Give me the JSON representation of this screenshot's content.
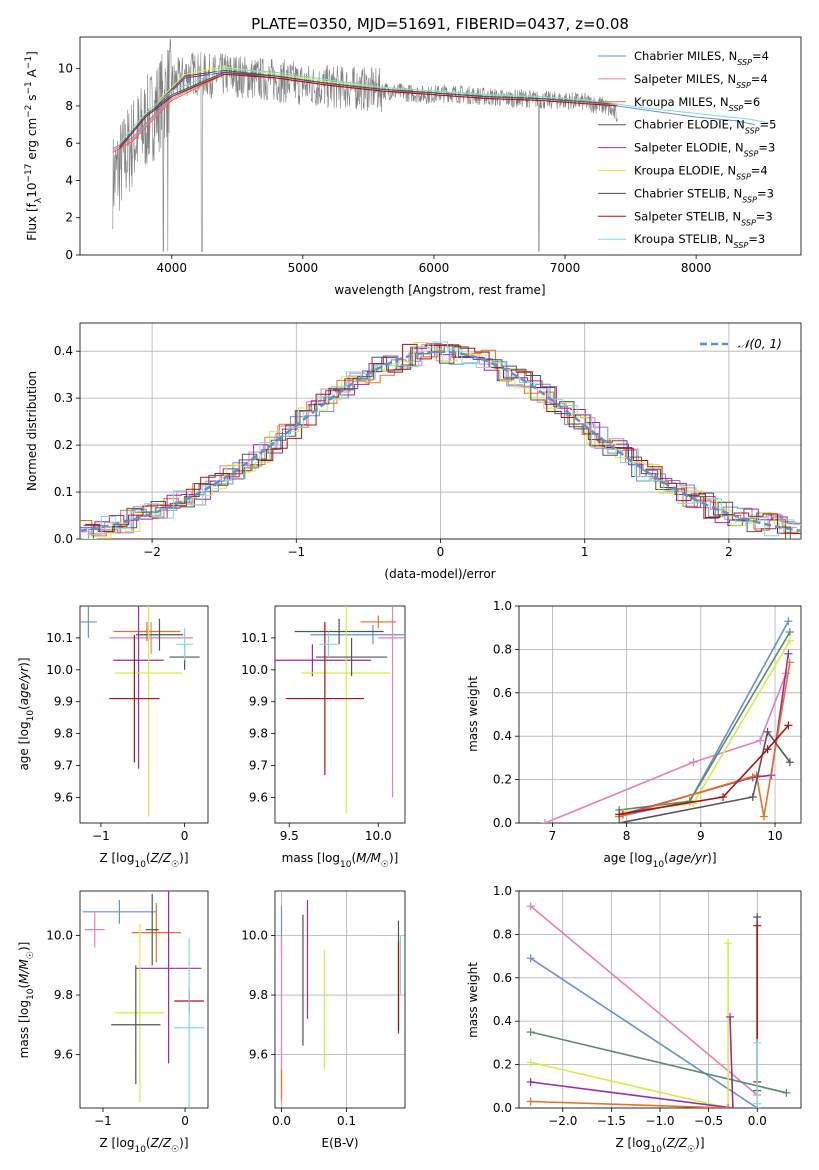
{
  "figure": {
    "title": "PLATE=0350, MJD=51691, FIBERID=0437, z=0.08"
  },
  "colors": {
    "data": "#808080",
    "fits": [
      "#6a8ed8",
      "#e87fb5",
      "#e87020",
      "#4a5a4a",
      "#9a2ab0",
      "#d4ec4a",
      "#555555",
      "#b01010",
      "#7edcdc"
    ],
    "wz": [
      "#e87fb5",
      "#6a8ed8",
      "#5a8a6a",
      "#d4ec4a",
      "#9a2ab0",
      "#e87020",
      "#555555",
      "#b01010",
      "#7edcdc"
    ]
  },
  "chart_data": [
    {
      "id": "spectrum",
      "type": "line",
      "title": "PLATE=0350, MJD=51691, FIBERID=0437, z=0.08",
      "xlabel": "wavelength [Angstrom, rest frame]",
      "ylabel": "Flux [f_λ 10^-17 erg cm^-2 s^-1 A^-1]",
      "xlim": [
        3300,
        8800
      ],
      "ylim": [
        0,
        11.7
      ],
      "xticks": [
        4000,
        5000,
        6000,
        7000,
        8000
      ],
      "yticks": [
        0,
        2,
        4,
        6,
        8,
        10
      ],
      "legend_position": "upper-right",
      "data_series": {
        "x": [
          3550,
          3700,
          3850,
          4000,
          4150,
          4300,
          4450,
          4600,
          4750,
          4900,
          5050,
          5200,
          5350,
          5500,
          5650,
          5800,
          5950,
          6100,
          6250,
          6400,
          6550,
          6700,
          6850,
          7000,
          7150,
          7300,
          7400
        ],
        "y": [
          4.0,
          6.0,
          7.5,
          9.2,
          9.8,
          9.6,
          9.7,
          9.5,
          9.4,
          9.3,
          9.1,
          9.0,
          9.0,
          8.9,
          8.8,
          8.7,
          8.6,
          8.7,
          8.6,
          8.5,
          8.4,
          8.4,
          8.3,
          8.3,
          8.2,
          8.0,
          7.5
        ]
      },
      "model_series": [
        {
          "name": "Chabrier MILES, N_SSP=4",
          "x": [
            3550,
            3700,
            4000,
            4400,
            4800,
            5200,
            5600,
            6000,
            6400,
            6800,
            7200,
            7600,
            8000,
            8300,
            8450
          ],
          "y": [
            5.7,
            6.3,
            8.5,
            9.8,
            9.6,
            9.2,
            8.9,
            8.7,
            8.5,
            8.4,
            8.2,
            7.8,
            7.4,
            7.2,
            7.0
          ]
        },
        {
          "name": "Salpeter MILES, N_SSP=4",
          "x": [
            3550,
            3700,
            4000,
            4400,
            4800,
            5200,
            5600,
            6000,
            6400,
            6800,
            7200,
            7400
          ],
          "y": [
            5.6,
            6.2,
            8.4,
            9.8,
            9.6,
            9.2,
            8.9,
            8.7,
            8.5,
            8.4,
            8.2,
            8.1
          ]
        },
        {
          "name": "Kroupa MILES, N_SSP=6",
          "x": [
            3550,
            3700,
            4000,
            4400,
            4800,
            5200,
            5600,
            6000,
            6400,
            6800,
            7200,
            7400
          ],
          "y": [
            5.5,
            6.1,
            8.3,
            9.7,
            9.5,
            9.1,
            8.8,
            8.7,
            8.5,
            8.4,
            8.2,
            8.1
          ]
        },
        {
          "name": "Chabrier ELODIE, N_SSP=5",
          "x": [
            3900,
            4100,
            4400,
            4800,
            5200,
            5600,
            6000,
            6400,
            6800
          ],
          "y": [
            8.2,
            9.6,
            9.9,
            9.6,
            9.2,
            8.9,
            8.7,
            8.5,
            8.4
          ]
        },
        {
          "name": "Salpeter ELODIE, N_SSP=3",
          "x": [
            3900,
            4100,
            4400,
            4800,
            5200,
            5600,
            6000,
            6400,
            6800
          ],
          "y": [
            8.1,
            9.5,
            9.8,
            9.5,
            9.1,
            8.8,
            8.6,
            8.4,
            8.3
          ]
        },
        {
          "name": "Kroupa ELODIE, N_SSP=4",
          "x": [
            3900,
            4100,
            4400,
            4800,
            5200,
            5600,
            6000,
            6400,
            6800
          ],
          "y": [
            8.3,
            9.7,
            10.1,
            9.7,
            9.3,
            9.0,
            8.8,
            8.6,
            8.5
          ]
        },
        {
          "name": "Chabrier STELIB, N_SSP=3",
          "x": [
            3600,
            3800,
            4000,
            4400,
            4800,
            5200,
            5600,
            6000,
            6400,
            6800,
            7200,
            7400
          ],
          "y": [
            5.8,
            7.5,
            8.6,
            9.8,
            9.6,
            9.2,
            8.9,
            8.7,
            8.5,
            8.4,
            8.2,
            8.1
          ]
        },
        {
          "name": "Salpeter STELIB, N_SSP=3",
          "x": [
            3600,
            3800,
            4000,
            4400,
            4800,
            5200,
            5600,
            6000,
            6400,
            6800,
            7200,
            7400
          ],
          "y": [
            5.7,
            7.4,
            8.5,
            9.7,
            9.5,
            9.1,
            8.8,
            8.6,
            8.4,
            8.3,
            8.1,
            8.0
          ]
        },
        {
          "name": "Kroupa STELIB, N_SSP=3",
          "x": [
            3600,
            3800,
            4000,
            4400,
            4800,
            5200,
            5600,
            6000,
            6400,
            6800,
            7200,
            7600,
            8000,
            8400,
            8550
          ],
          "y": [
            6.0,
            7.6,
            8.8,
            10.0,
            9.8,
            9.4,
            9.0,
            8.8,
            8.6,
            8.5,
            8.3,
            7.9,
            7.6,
            7.3,
            7.1
          ]
        }
      ],
      "legend_labels": [
        [
          "Chabrier MILES, N",
          "SSP",
          "=4"
        ],
        [
          "Salpeter MILES, N",
          "SSP",
          "=4"
        ],
        [
          "Kroupa MILES, N",
          "SSP",
          "=6"
        ],
        [
          "Chabrier ELODIE, N",
          "SSP",
          "=5"
        ],
        [
          "Salpeter ELODIE, N",
          "SSP",
          "=3"
        ],
        [
          "Kroupa ELODIE, N",
          "SSP",
          "=4"
        ],
        [
          "Chabrier STELIB, N",
          "SSP",
          "=3"
        ],
        [
          "Salpeter STELIB, N",
          "SSP",
          "=3"
        ],
        [
          "Kroupa STELIB, N",
          "SSP",
          "=3"
        ]
      ]
    },
    {
      "id": "residuals",
      "type": "histogram",
      "xlabel": "(data-model)/error",
      "ylabel": "Normed distribution",
      "xlim": [
        -2.5,
        2.5
      ],
      "ylim": [
        0,
        0.46
      ],
      "xticks": [
        -2,
        -1,
        0,
        1,
        2
      ],
      "yticks": [
        0.0,
        0.1,
        0.2,
        0.3,
        0.4
      ],
      "grid": true,
      "legend": "𝒩(0, 1)",
      "legend_position": "upper-right",
      "bin_width": 0.1,
      "bin_start": -2.5,
      "gaussian": {
        "mean": 0,
        "sigma": 1
      }
    },
    {
      "id": "age_vs_Z",
      "type": "errorbar",
      "xlabel": "Z [log10(Z/Z☉)]",
      "ylabel": "age [log10(age/yr)]",
      "xlim": [
        -1.25,
        0.28
      ],
      "ylim": [
        9.52,
        10.2
      ],
      "xticks": [
        -1,
        0
      ],
      "yticks": [
        9.6,
        9.7,
        9.8,
        9.9,
        10.0,
        10.1
      ],
      "points": [
        {
          "x": -1.15,
          "xerr": 0.1,
          "y": 10.15,
          "yerr": 0.05
        },
        {
          "x": -0.4,
          "xerr": 0.5,
          "y": 10.1,
          "yerr": 0.05
        },
        {
          "x": -0.45,
          "xerr": 0.4,
          "y": 10.12,
          "yerr": 0.03
        },
        {
          "x": -0.3,
          "xerr": 0.28,
          "y": 10.11,
          "yerr": 0.05
        },
        {
          "x": -0.55,
          "xerr": 0.3,
          "y": 10.03,
          "yerr": 0.34
        },
        {
          "x": -0.43,
          "xerr": 0.4,
          "y": 9.99,
          "yerr": 0.45
        },
        {
          "x": 0.0,
          "xerr": 0.18,
          "y": 10.04,
          "yerr": 0.04
        },
        {
          "x": -0.6,
          "xerr": 0.3,
          "y": 9.91,
          "yerr": 0.2
        },
        {
          "x": 0.0,
          "xerr": 0.1,
          "y": 10.08,
          "yerr": 0.05
        }
      ]
    },
    {
      "id": "age_vs_mass",
      "type": "errorbar",
      "xlabel": "mass [log10(M/M☉)]",
      "ylabel": "",
      "xlim": [
        9.42,
        10.15
      ],
      "ylim": [
        9.52,
        10.2
      ],
      "xticks": [
        9.5,
        10.0
      ],
      "yticks": [
        9.6,
        9.7,
        9.8,
        9.9,
        10.0,
        10.1
      ],
      "points": [
        {
          "x": 9.97,
          "xerr": 0.35,
          "y": 10.11,
          "yerr": 0.03
        },
        {
          "x": 10.08,
          "xerr": 0.08,
          "y": 10.1,
          "yerr": 0.5
        },
        {
          "x": 10.0,
          "xerr": 0.1,
          "y": 10.15,
          "yerr": 0.02
        },
        {
          "x": 9.78,
          "xerr": 0.25,
          "y": 10.12,
          "yerr": 0.04
        },
        {
          "x": 9.63,
          "xerr": 0.33,
          "y": 10.03,
          "yerr": 0.05
        },
        {
          "x": 9.82,
          "xerr": 0.25,
          "y": 9.99,
          "yerr": 0.44
        },
        {
          "x": 9.85,
          "xerr": 0.2,
          "y": 10.04,
          "yerr": 0.06
        },
        {
          "x": 9.7,
          "xerr": 0.22,
          "y": 9.91,
          "yerr": 0.24
        },
        {
          "x": 9.72,
          "xerr": 0.05,
          "y": 10.08,
          "yerr": 0.04
        }
      ]
    },
    {
      "id": "mass_weight_vs_age",
      "type": "line",
      "xlabel": "age [log10(age/yr)]",
      "ylabel": "mass weight",
      "xlim": [
        6.55,
        10.35
      ],
      "ylim": [
        0,
        1.0
      ],
      "xticks": [
        7,
        8,
        9,
        10
      ],
      "yticks": [
        0.0,
        0.2,
        0.4,
        0.6,
        0.8,
        1.0
      ],
      "grid": true,
      "series": [
        {
          "x": [
            6.9,
            8.9,
            9.8,
            10.15
          ],
          "y": [
            0.0,
            0.28,
            0.38,
            0.69
          ]
        },
        {
          "x": [
            7.9,
            8.85,
            10.18
          ],
          "y": [
            0.03,
            0.1,
            0.93
          ]
        },
        {
          "x": [
            7.9,
            8.85,
            10.2
          ],
          "y": [
            0.06,
            0.1,
            0.88
          ]
        },
        {
          "x": [
            7.95,
            8.9,
            10.2
          ],
          "y": [
            0.05,
            0.09,
            0.84
          ]
        },
        {
          "x": [
            7.95,
            9.7,
            9.95,
            10.18
          ],
          "y": [
            0.04,
            0.21,
            0.22,
            0.78
          ]
        },
        {
          "x": [
            7.9,
            9.75,
            9.85,
            10.2
          ],
          "y": [
            0.03,
            0.22,
            0.03,
            0.74
          ]
        },
        {
          "x": [
            7.9,
            9.7,
            9.9,
            10.2
          ],
          "y": [
            0.0,
            0.12,
            0.42,
            0.28
          ]
        },
        {
          "x": [
            7.9,
            9.3,
            9.9,
            10.18
          ],
          "y": [
            0.04,
            0.12,
            0.34,
            0.45
          ]
        }
      ]
    },
    {
      "id": "mass_vs_Z",
      "type": "errorbar",
      "xlabel": "Z [log10(Z/Z☉)]",
      "ylabel": "mass [log10(M/M☉)]",
      "xlim": [
        -1.28,
        0.28
      ],
      "ylim": [
        9.42,
        10.15
      ],
      "xticks": [
        -1,
        0
      ],
      "yticks": [
        9.6,
        9.8,
        10.0
      ],
      "points": [
        {
          "x": -0.8,
          "xerr": 0.45,
          "y": 10.08,
          "yerr": 0.04
        },
        {
          "x": -1.1,
          "xerr": 0.12,
          "y": 10.02,
          "yerr": 0.06
        },
        {
          "x": -0.35,
          "xerr": 0.3,
          "y": 10.01,
          "yerr": 0.1
        },
        {
          "x": -0.4,
          "xerr": 0.08,
          "y": 10.02,
          "yerr": 0.12
        },
        {
          "x": -0.2,
          "xerr": 0.4,
          "y": 9.89,
          "yerr": 0.32
        },
        {
          "x": -0.55,
          "xerr": 0.3,
          "y": 9.74,
          "yerr": 0.3
        },
        {
          "x": -0.6,
          "xerr": 0.3,
          "y": 9.7,
          "yerr": 0.2
        },
        {
          "x": 0.05,
          "xerr": 0.18,
          "y": 9.78,
          "yerr": 0.04
        },
        {
          "x": 0.05,
          "xerr": 0.18,
          "y": 9.69,
          "yerr": 0.3
        }
      ]
    },
    {
      "id": "mass_vs_ebv",
      "type": "errorbar",
      "xlabel": "E(B-V)",
      "ylabel": "",
      "xlim": [
        -0.01,
        0.19
      ],
      "ylim": [
        9.42,
        10.15
      ],
      "xticks": [
        0.0,
        0.1
      ],
      "yticks": [
        9.6,
        9.8,
        10.0
      ],
      "grid": true,
      "points": [
        {
          "x": 0.0,
          "y": 10.02,
          "yerr": 0.08
        },
        {
          "x": 0.0,
          "y": 9.72,
          "yerr": 0.28
        },
        {
          "x": 0.0,
          "y": 9.5,
          "yerr": 0.05
        },
        {
          "x": 0.033,
          "y": 9.85,
          "yerr": 0.22
        },
        {
          "x": 0.04,
          "y": 9.92,
          "yerr": 0.2
        },
        {
          "x": 0.066,
          "y": 9.75,
          "yerr": 0.2
        },
        {
          "x": 0.18,
          "y": 9.86,
          "yerr": 0.19
        },
        {
          "x": 0.18,
          "y": 9.83,
          "yerr": 0.15
        },
        {
          "x": 0.183,
          "y": 9.9,
          "yerr": 0.1
        }
      ]
    },
    {
      "id": "mass_weight_vs_Z",
      "type": "line",
      "xlabel": "Z [log10(Z/Z☉)]",
      "ylabel": "mass weight",
      "xlim": [
        -2.45,
        0.45
      ],
      "ylim": [
        0,
        1.0
      ],
      "xticks": [
        -2.0,
        -1.5,
        -1.0,
        -0.5,
        0.0
      ],
      "yticks": [
        0.0,
        0.2,
        0.4,
        0.6,
        0.8,
        1.0
      ],
      "grid": true,
      "series": [
        {
          "x": [
            -2.33,
            0.0
          ],
          "y": [
            0.93,
            0.06
          ]
        },
        {
          "x": [
            -2.33,
            0.0
          ],
          "y": [
            0.69,
            0.0
          ]
        },
        {
          "x": [
            -2.33,
            0.3
          ],
          "y": [
            0.35,
            0.07
          ]
        },
        {
          "x": [
            -2.33,
            -0.3,
            -0.3
          ],
          "y": [
            0.21,
            0.0,
            0.76
          ]
        },
        {
          "x": [
            -2.33,
            -0.25,
            -0.28
          ],
          "y": [
            0.12,
            0.0,
            0.42
          ]
        },
        {
          "x": [
            -2.33,
            -0.3
          ],
          "y": [
            0.03,
            0.0
          ]
        },
        {
          "x": [
            0.0,
            0.0
          ],
          "y": [
            0.88,
            0.08
          ]
        },
        {
          "x": [
            0.0,
            0.0
          ],
          "y": [
            0.84,
            0.12
          ]
        },
        {
          "x": [
            0.0,
            0.0
          ],
          "y": [
            0.3,
            0.02
          ]
        }
      ]
    }
  ]
}
